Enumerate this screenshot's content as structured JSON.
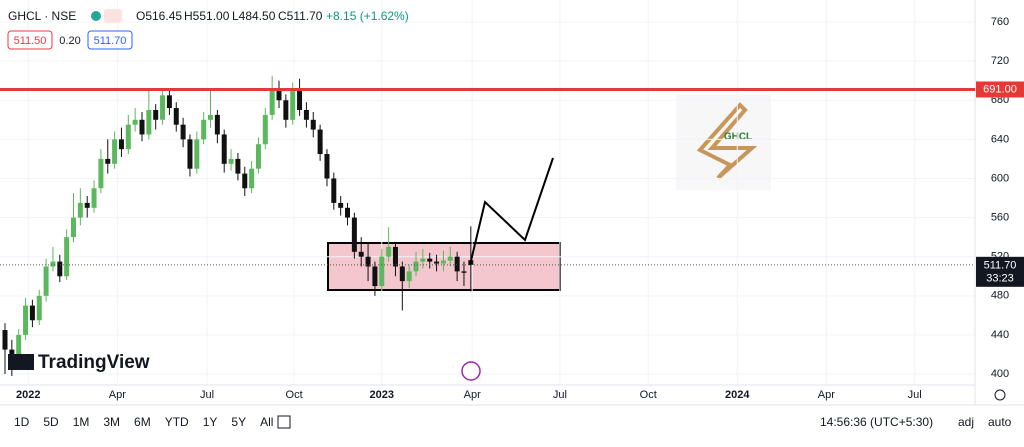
{
  "header": {
    "symbol": "GHCL · NSE",
    "open": "O516.45",
    "high": "H551.00",
    "low": "L484.50",
    "close": "C511.70",
    "change": "+8.15 (+1.62%)",
    "bid": "511.50",
    "spread": "0.20",
    "ask": "511.70"
  },
  "chart_data": {
    "type": "candlestick",
    "ohlc": [
      [
        445,
        452,
        400,
        425
      ],
      [
        425,
        435,
        398,
        410
      ],
      [
        410,
        446,
        405,
        440
      ],
      [
        440,
        478,
        435,
        470
      ],
      [
        470,
        476,
        448,
        455
      ],
      [
        455,
        486,
        450,
        480
      ],
      [
        480,
        518,
        474,
        510
      ],
      [
        510,
        530,
        505,
        515
      ],
      [
        515,
        522,
        494,
        500
      ],
      [
        500,
        548,
        496,
        540
      ],
      [
        540,
        585,
        535,
        560
      ],
      [
        560,
        590,
        552,
        575
      ],
      [
        575,
        582,
        560,
        570
      ],
      [
        570,
        598,
        565,
        590
      ],
      [
        590,
        630,
        585,
        620
      ],
      [
        620,
        640,
        605,
        615
      ],
      [
        615,
        648,
        610,
        640
      ],
      [
        640,
        652,
        622,
        630
      ],
      [
        630,
        665,
        625,
        655
      ],
      [
        655,
        672,
        648,
        660
      ],
      [
        660,
        668,
        638,
        645
      ],
      [
        645,
        690,
        640,
        670
      ],
      [
        670,
        676,
        650,
        660
      ],
      [
        660,
        692,
        655,
        685
      ],
      [
        685,
        690,
        665,
        672
      ],
      [
        672,
        678,
        648,
        655
      ],
      [
        655,
        662,
        632,
        640
      ],
      [
        640,
        645,
        602,
        610
      ],
      [
        610,
        648,
        605,
        640
      ],
      [
        640,
        668,
        635,
        660
      ],
      [
        660,
        690,
        652,
        665
      ],
      [
        665,
        670,
        636,
        645
      ],
      [
        645,
        650,
        606,
        615
      ],
      [
        615,
        630,
        608,
        620
      ],
      [
        620,
        626,
        598,
        605
      ],
      [
        605,
        612,
        582,
        590
      ],
      [
        590,
        618,
        585,
        610
      ],
      [
        610,
        642,
        605,
        635
      ],
      [
        635,
        672,
        630,
        665
      ],
      [
        665,
        705,
        660,
        690
      ],
      [
        690,
        700,
        672,
        680
      ],
      [
        680,
        686,
        652,
        660
      ],
      [
        660,
        698,
        655,
        690
      ],
      [
        690,
        702,
        664,
        670
      ],
      [
        670,
        678,
        652,
        660
      ],
      [
        660,
        668,
        642,
        650
      ],
      [
        650,
        655,
        618,
        625
      ],
      [
        625,
        630,
        592,
        600
      ],
      [
        600,
        606,
        568,
        575
      ],
      [
        575,
        582,
        562,
        570
      ],
      [
        570,
        575,
        552,
        560
      ],
      [
        560,
        565,
        518,
        525
      ],
      [
        525,
        540,
        510,
        520
      ],
      [
        520,
        535,
        495,
        510
      ],
      [
        510,
        515,
        480,
        490
      ],
      [
        490,
        528,
        485,
        520
      ],
      [
        520,
        550,
        515,
        530
      ],
      [
        530,
        534,
        500,
        510
      ],
      [
        510,
        515,
        465,
        495
      ],
      [
        495,
        512,
        488,
        505
      ],
      [
        505,
        525,
        500,
        515
      ],
      [
        515,
        528,
        508,
        518
      ],
      [
        518,
        524,
        508,
        515
      ],
      [
        515,
        522,
        505,
        513
      ],
      [
        513,
        526,
        505,
        516
      ],
      [
        516,
        530,
        510,
        520
      ],
      [
        520,
        525,
        495,
        505
      ],
      [
        505,
        515,
        490,
        503.55
      ],
      [
        516.45,
        551,
        484.5,
        511.7
      ]
    ],
    "up_color": "#5cb85c",
    "down_color": "#111111",
    "ylim": [
      388.8,
      782.5
    ],
    "yticks": [
      400,
      440,
      480,
      520,
      560,
      600,
      640,
      680,
      720,
      760
    ],
    "xlim": [
      -0.73,
      141.6
    ],
    "xticks": [
      {
        "value": 3.4,
        "label": "2022"
      },
      {
        "value": 16.4,
        "label": "Apr"
      },
      {
        "value": 29.5,
        "label": "Jul"
      },
      {
        "value": 42.2,
        "label": "Oct"
      },
      {
        "value": 55,
        "label": "2023"
      },
      {
        "value": 68.2,
        "label": "Apr"
      },
      {
        "value": 81,
        "label": "Jul"
      },
      {
        "value": 93.9,
        "label": "Oct"
      },
      {
        "value": 106.9,
        "label": "2024"
      },
      {
        "value": 119.9,
        "label": "Apr"
      },
      {
        "value": 132.8,
        "label": "Jul"
      }
    ],
    "level": {
      "value": 691,
      "label": "691.00",
      "color": "#e53935"
    },
    "last": {
      "value": 511.7,
      "label": "511.70",
      "countdown": "33:23"
    }
  },
  "toolbar": {
    "ranges": [
      "1D",
      "5D",
      "1M",
      "3M",
      "6M",
      "YTD",
      "1Y",
      "5Y",
      "All"
    ],
    "time": "14:56:36 (UTC+5:30)",
    "adj": "adj",
    "auto": "auto"
  },
  "brand": "TradingView",
  "logo": "GHCL"
}
